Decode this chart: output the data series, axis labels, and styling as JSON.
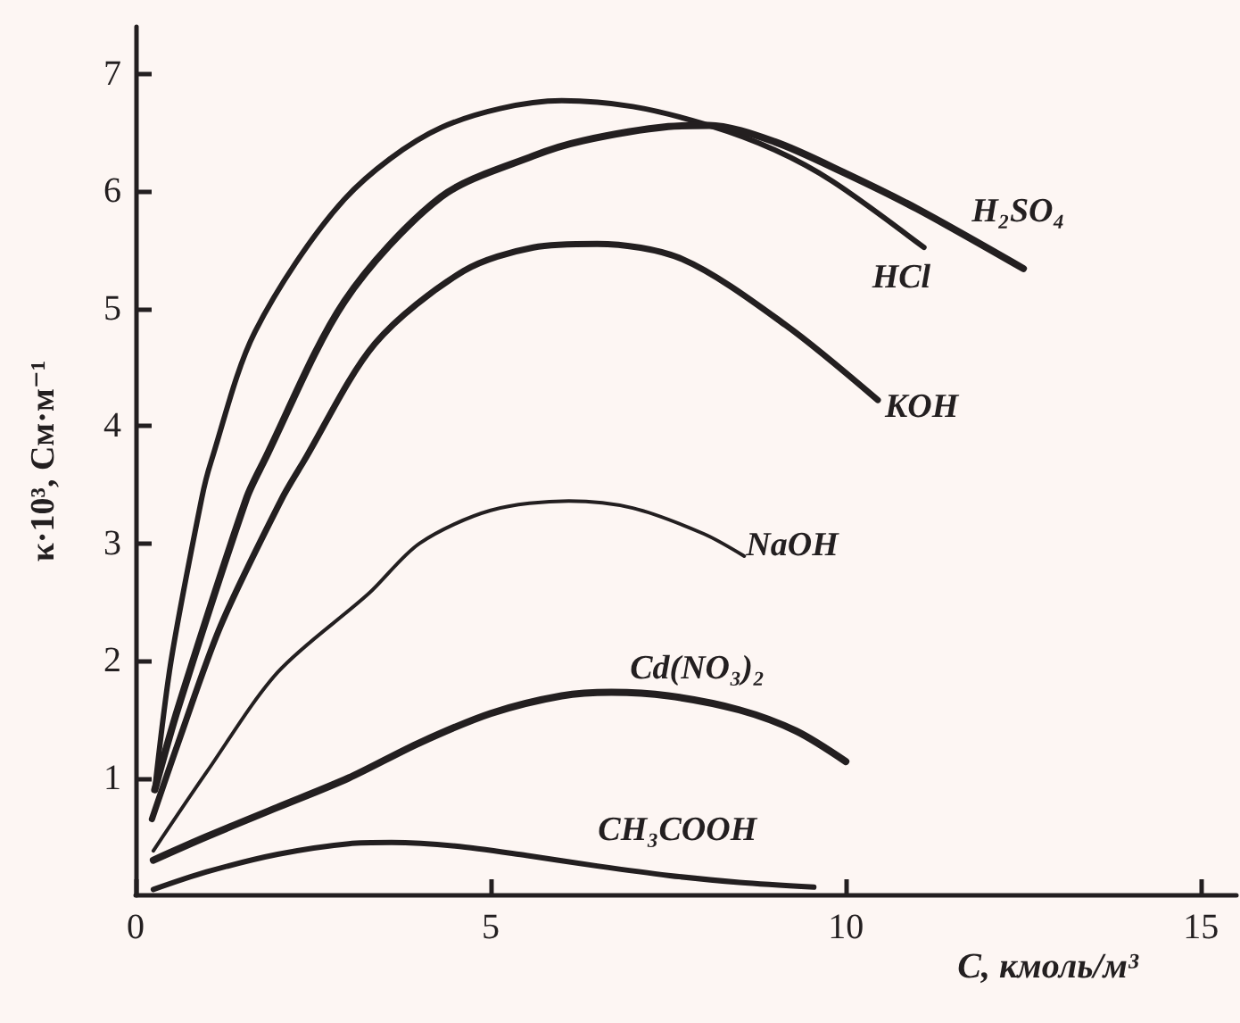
{
  "chart_data": {
    "type": "line",
    "xlabel": "C, кмоль/м³",
    "ylabel": "κ·10³, См·м⁻¹",
    "xlim": [
      0,
      15.5
    ],
    "ylim": [
      0,
      7.4
    ],
    "xticks": [
      0,
      5,
      10,
      15
    ],
    "yticks": [
      1,
      2,
      3,
      4,
      5,
      6,
      7
    ],
    "grid": false,
    "legend": false,
    "marker": "none",
    "line_style": "solid",
    "series": [
      {
        "name": "HCl",
        "color": "#231f20",
        "x": [
          0.27,
          0.5,
          0.93,
          1.06,
          1.68,
          2.94,
          4.3,
          6.0,
          7.0,
          8.07,
          9.0,
          9.82,
          11.1
        ],
        "values": [
          0.9,
          2.0,
          3.38,
          3.69,
          4.8,
          5.93,
          6.54,
          6.77,
          6.72,
          6.56,
          6.35,
          6.08,
          5.52
        ]
      },
      {
        "name": "H₂SO₄",
        "color": "#231f20",
        "x": [
          0.27,
          0.6,
          1.56,
          1.8,
          2.94,
          4.3,
          5.6,
          6.3,
          7.5,
          8.07,
          9.0,
          10.0,
          11.0,
          12.5
        ],
        "values": [
          0.9,
          1.6,
          3.38,
          3.69,
          5.06,
          5.95,
          6.3,
          6.43,
          6.55,
          6.56,
          6.42,
          6.15,
          5.85,
          5.34
        ]
      },
      {
        "name": "KOH",
        "color": "#231f20",
        "x": [
          0.23,
          0.6,
          1.2,
          2.06,
          2.36,
          3.37,
          4.62,
          5.6,
          6.5,
          7.7,
          9.15,
          10.45
        ],
        "values": [
          0.65,
          1.3,
          2.3,
          3.38,
          3.69,
          4.7,
          5.32,
          5.52,
          5.55,
          5.42,
          4.86,
          4.22
        ]
      },
      {
        "name": "NaOH",
        "color": "#231f20",
        "x": [
          0.25,
          1,
          2,
          3.28,
          4,
          5,
          6.1,
          7,
          8,
          8.57
        ],
        "values": [
          0.38,
          1.05,
          1.9,
          2.57,
          3.0,
          3.28,
          3.36,
          3.3,
          3.08,
          2.89
        ]
      },
      {
        "name": "Cd(NO₃)₂",
        "color": "#231f20",
        "x": [
          0.25,
          1,
          2,
          3,
          4,
          5,
          6,
          6.7,
          7.5,
          8.5,
          9.3,
          10.0
        ],
        "values": [
          0.3,
          0.5,
          0.75,
          1.0,
          1.3,
          1.55,
          1.7,
          1.73,
          1.7,
          1.58,
          1.4,
          1.14
        ]
      },
      {
        "name": "CH₃COOH",
        "color": "#231f20",
        "x": [
          0.25,
          1,
          2,
          3,
          3.6,
          4.5,
          5.5,
          6.5,
          7.5,
          8.5,
          9.55
        ],
        "values": [
          0.05,
          0.2,
          0.35,
          0.44,
          0.45,
          0.42,
          0.34,
          0.25,
          0.17,
          0.11,
          0.07
        ]
      }
    ]
  }
}
